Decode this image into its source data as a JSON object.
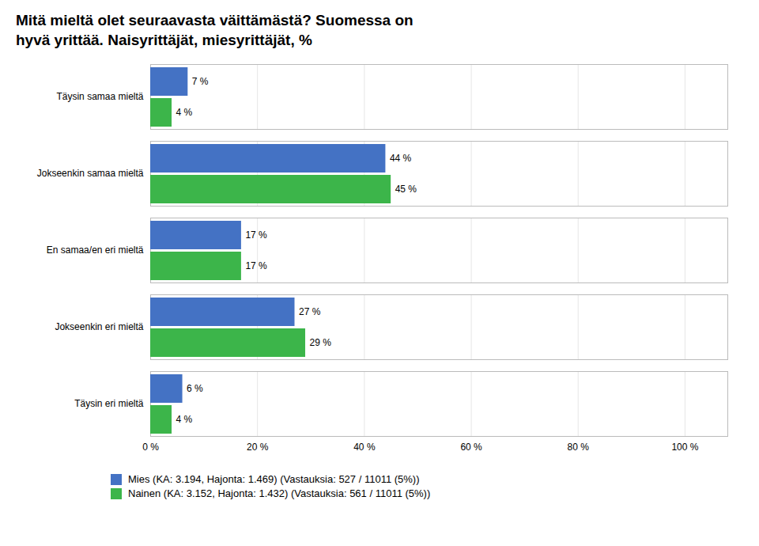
{
  "chart_data": {
    "type": "bar",
    "orientation": "horizontal",
    "title": "Mitä mieltä olet seuraavasta väittämästä? Suomessa on\nhyvä yrittää. Naisyrittäjät, miesyrittäjät, %",
    "categories": [
      "Täysin samaa mieltä",
      "Jokseenkin samaa mieltä",
      "En samaa/en eri mieltä",
      "Jokseenkin eri mieltä",
      "Täysin eri mieltä"
    ],
    "series": [
      {
        "name": "Mies (KA: 3.194, Hajonta: 1.469) (Vastauksia: 527 / 11011 (5%))",
        "color": "#4472C4",
        "values": [
          7,
          44,
          17,
          27,
          6
        ],
        "value_labels": [
          "7 %",
          "44 %",
          "17 %",
          "27 %",
          "6 %"
        ]
      },
      {
        "name": "Nainen (KA: 3.152, Hajonta: 1.432) (Vastauksia: 561 / 11011 (5%))",
        "color": "#3CB54A",
        "values": [
          4,
          45,
          17,
          29,
          4
        ],
        "value_labels": [
          "4 %",
          "45 %",
          "17 %",
          "29 %",
          "4 %"
        ]
      }
    ],
    "xlim": [
      0,
      108
    ],
    "xticks": [
      {
        "value": 0,
        "label": "0 %"
      },
      {
        "value": 20,
        "label": "20 %"
      },
      {
        "value": 40,
        "label": "40 %"
      },
      {
        "value": 60,
        "label": "60 %"
      },
      {
        "value": 80,
        "label": "80 %"
      },
      {
        "value": 100,
        "label": "100 %"
      }
    ],
    "grid": true,
    "data_labels": true,
    "legend": "bottom"
  }
}
